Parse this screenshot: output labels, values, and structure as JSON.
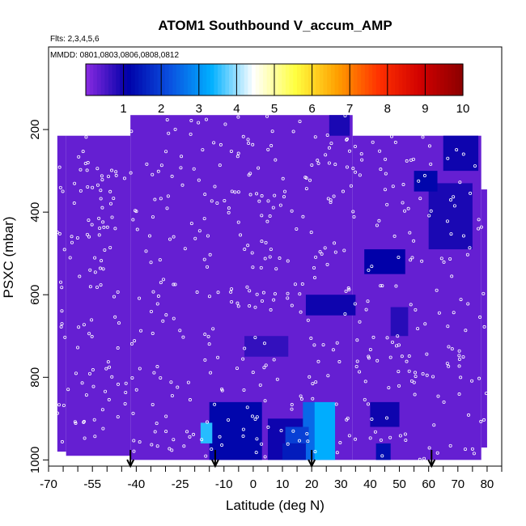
{
  "chart_data": {
    "type": "heatmap",
    "title": "ATOM1 Southbound V_accum_AMP",
    "subtitle_flights": "Flts: 2,3,4,5,6",
    "subtitle_dates": "MMDD: 0801,0803,0806,0808,0812",
    "xlabel": "Latitude (deg N)",
    "ylabel": "PSXC (mbar)",
    "xlim": [
      -70,
      85
    ],
    "ylim": [
      1015,
      0
    ],
    "x_ticks": [
      -70,
      -55,
      -40,
      -25,
      -10,
      0,
      10,
      20,
      30,
      40,
      50,
      60,
      70,
      80
    ],
    "x_minor_ticks": [
      -65,
      -60,
      -50,
      -45,
      -35,
      -30,
      -20,
      -15,
      -5,
      5,
      15,
      25,
      35,
      45,
      55,
      65,
      75,
      85
    ],
    "y_ticks": [
      200,
      400,
      600,
      800,
      1000
    ],
    "colorbar": {
      "ticks": [
        1,
        2,
        3,
        4,
        5,
        6,
        7,
        8,
        9,
        10
      ],
      "range": [
        0,
        10
      ],
      "colors": [
        "#8a2be2",
        "#0000a8",
        "#0a50e0",
        "#00b0ff",
        "#ffffff",
        "#ffff40",
        "#ffa000",
        "#ff3000",
        "#d00000",
        "#8b0000"
      ]
    },
    "background_value": 0.3,
    "domain": [
      {
        "lat_min": -67,
        "lat_max": -64,
        "p_min": 215,
        "p_max": 980
      },
      {
        "lat_min": -64,
        "lat_max": -42,
        "p_min": 215,
        "p_max": 990
      },
      {
        "lat_min": -42,
        "lat_max": 34,
        "p_min": 165,
        "p_max": 1000
      },
      {
        "lat_min": 34,
        "lat_max": 78,
        "p_min": 215,
        "p_max": 1000
      },
      {
        "lat_min": 78,
        "lat_max": 80,
        "p_min": 345,
        "p_max": 970
      }
    ],
    "features": [
      {
        "lat_min": -15,
        "lat_max": 3,
        "p_min": 860,
        "p_max": 1000,
        "value": 1.2
      },
      {
        "lat_min": 5,
        "lat_max": 20,
        "p_min": 900,
        "p_max": 1000,
        "value": 1.0
      },
      {
        "lat_min": 17,
        "lat_max": 23,
        "p_min": 860,
        "p_max": 1000,
        "value": 2.5
      },
      {
        "lat_min": 21,
        "lat_max": 28,
        "p_min": 860,
        "p_max": 1000,
        "value": 3.3
      },
      {
        "lat_min": -18,
        "lat_max": -14,
        "p_min": 910,
        "p_max": 960,
        "value": 3.5
      },
      {
        "lat_min": 11,
        "lat_max": 19,
        "p_min": 920,
        "p_max": 960,
        "value": 2.0
      },
      {
        "lat_min": 10,
        "lat_max": 18,
        "p_min": 960,
        "p_max": 1000,
        "value": 1.5
      },
      {
        "lat_min": 40,
        "lat_max": 50,
        "p_min": 860,
        "p_max": 920,
        "value": 1.0
      },
      {
        "lat_min": 42,
        "lat_max": 47,
        "p_min": 960,
        "p_max": 1000,
        "value": 1.3
      },
      {
        "lat_min": 18,
        "lat_max": 35,
        "p_min": 600,
        "p_max": 650,
        "value": 1.0
      },
      {
        "lat_min": 47,
        "lat_max": 53,
        "p_min": 630,
        "p_max": 700,
        "value": 0.8
      },
      {
        "lat_min": 38,
        "lat_max": 52,
        "p_min": 490,
        "p_max": 550,
        "value": 1.1
      },
      {
        "lat_min": 60,
        "lat_max": 75,
        "p_min": 330,
        "p_max": 490,
        "value": 0.9
      },
      {
        "lat_min": 55,
        "lat_max": 63,
        "p_min": 300,
        "p_max": 350,
        "value": 1.2
      },
      {
        "lat_min": 65,
        "lat_max": 77,
        "p_min": 215,
        "p_max": 300,
        "value": 1.0
      },
      {
        "lat_min": 26,
        "lat_max": 33,
        "p_min": 165,
        "p_max": 215,
        "value": 0.9
      },
      {
        "lat_min": -3,
        "lat_max": 12,
        "p_min": 700,
        "p_max": 750,
        "value": 0.7
      }
    ],
    "arrow_latitudes": [
      -42,
      -13,
      20,
      61
    ]
  }
}
